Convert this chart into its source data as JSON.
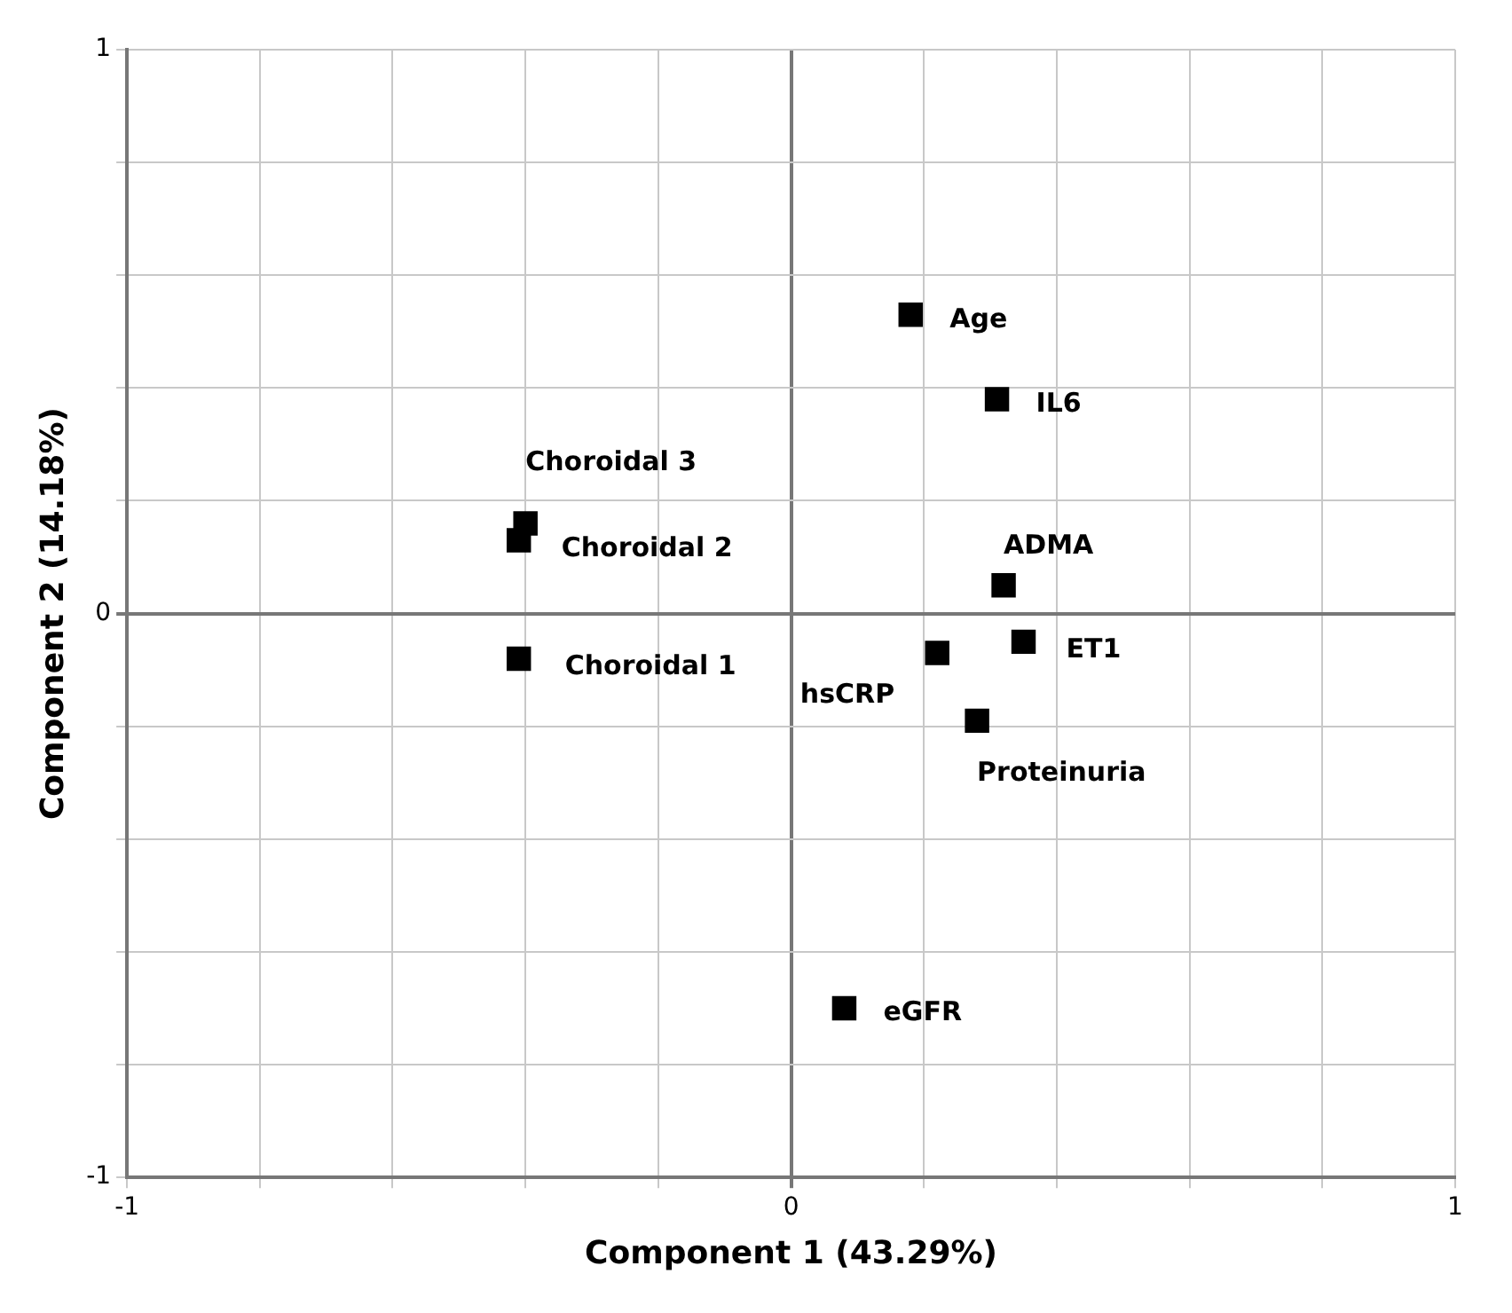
{
  "chart_data": {
    "type": "scatter",
    "xlabel": "Component 1 (43.29%)",
    "ylabel": "Component 2 (14.18%)",
    "xlim": [
      -1,
      1
    ],
    "ylim": [
      -1,
      1
    ],
    "xticks": [
      -1,
      {
        "value": -0.8,
        "label": null
      },
      {
        "value": -0.6,
        "label": null
      },
      {
        "value": -0.4,
        "label": null
      },
      {
        "value": -0.2,
        "label": null
      },
      0,
      {
        "value": 0.2,
        "label": null
      },
      {
        "value": 0.4,
        "label": null
      },
      {
        "value": 0.6,
        "label": null
      },
      {
        "value": 0.8,
        "label": null
      },
      1
    ],
    "yticks": [
      -1,
      {
        "value": -0.8,
        "label": null
      },
      {
        "value": -0.6,
        "label": null
      },
      {
        "value": -0.4,
        "label": null
      },
      {
        "value": -0.2,
        "label": null
      },
      0,
      {
        "value": 0.2,
        "label": null
      },
      {
        "value": 0.4,
        "label": null
      },
      {
        "value": 0.6,
        "label": null
      },
      {
        "value": 0.8,
        "label": null
      },
      1
    ],
    "grid": true,
    "legend": false,
    "marker": "square",
    "series": [
      {
        "color": "#000000",
        "x": [
          0.18,
          0.31,
          -0.4,
          -0.41,
          0.32,
          -0.41,
          0.22,
          0.35,
          0.28,
          0.08
        ],
        "values": [
          0.53,
          0.38,
          0.16,
          0.13,
          0.05,
          -0.08,
          -0.07,
          -0.05,
          -0.19,
          -0.7
        ]
      }
    ],
    "annotations": [
      {
        "text": "Age",
        "x": 0.18,
        "y": 0.53
      },
      {
        "text": "IL6",
        "x": 0.31,
        "y": 0.38
      },
      {
        "text": "Choroidal 3",
        "x": -0.4,
        "y": 0.16
      },
      {
        "text": "Choroidal 2",
        "x": -0.41,
        "y": 0.13
      },
      {
        "text": "ADMA",
        "x": 0.32,
        "y": 0.05
      },
      {
        "text": "Choroidal 1",
        "x": -0.41,
        "y": -0.08
      },
      {
        "text": "hsCRP",
        "x": 0.22,
        "y": -0.07
      },
      {
        "text": "ET1",
        "x": 0.35,
        "y": -0.05
      },
      {
        "text": "Proteinuria",
        "x": 0.28,
        "y": -0.19
      },
      {
        "text": "eGFR",
        "x": 0.08,
        "y": -0.7
      }
    ]
  }
}
